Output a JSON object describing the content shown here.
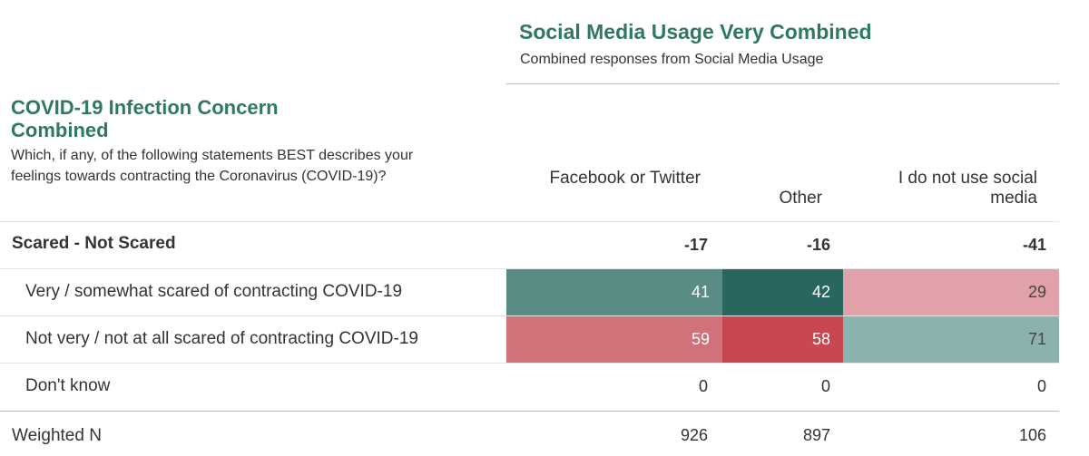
{
  "column_header": {
    "title": "Social Media Usage Very Combined",
    "subtitle": "Combined responses from Social Media Usage"
  },
  "row_header": {
    "title": "COVID-19 Infection Concern Combined",
    "question": "Which, if any, of the following statements BEST describes your feelings towards contracting the Coronavirus (COVID-19)?"
  },
  "chart_data": {
    "type": "table",
    "columns": [
      "Facebook or Twitter",
      "Other",
      "I do not use social media"
    ],
    "summary_row": {
      "label": "Scared - Not Scared",
      "values": [
        "-17",
        "-16",
        "-41"
      ]
    },
    "rows": [
      {
        "label": "Very / somewhat scared of contracting COVID-19",
        "values": [
          41,
          42,
          29
        ]
      },
      {
        "label": "Not very / not at all scared of contracting COVID-19",
        "values": [
          59,
          58,
          71
        ]
      },
      {
        "label": "Don't know",
        "values": [
          0,
          0,
          0
        ]
      }
    ],
    "weighted_n": {
      "label": "Weighted N",
      "values": [
        926,
        897,
        106
      ]
    }
  },
  "colors": {
    "title_green": "#2f7a5e",
    "cell_colors": [
      [
        "#5a8c86",
        "#2a6660",
        "#e0a2a8"
      ],
      [
        "#d1717a",
        "#c84852",
        "#8bb3ae"
      ]
    ]
  }
}
